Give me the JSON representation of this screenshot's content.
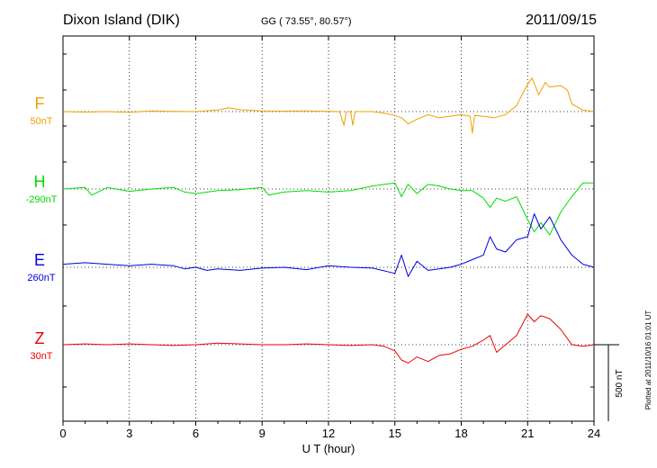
{
  "header": {
    "station": "Dixon Island (DIK)",
    "coords": "GG ( 73.55°,  80.57°)",
    "date": "2011/09/15"
  },
  "footer": {
    "plotted": "Plotted at 2011/10/16 01:01  UT",
    "scale_label": "500 nT"
  },
  "chart_data": {
    "type": "line",
    "xlabel": "U T (hour)",
    "xlim": [
      0,
      24
    ],
    "x_ticks": [
      0,
      3,
      6,
      9,
      12,
      15,
      18,
      21,
      24
    ],
    "scale_bar_nT": 500,
    "grid": "dotted",
    "series": [
      {
        "name": "F",
        "baseline_label": "50nT",
        "color": "#f0a000",
        "x": [
          0,
          1,
          2,
          3,
          4,
          5,
          6,
          7,
          7.5,
          8,
          9,
          10,
          11,
          12,
          12.5,
          12.7,
          12.8,
          13,
          13.1,
          13.2,
          14,
          14.5,
          15,
          15.3,
          15.6,
          16,
          16.5,
          17,
          17.5,
          18,
          18.4,
          18.5,
          18.6,
          19,
          19.5,
          20,
          20.5,
          21,
          21.2,
          21.5,
          21.8,
          22,
          22.5,
          22.8,
          23,
          23.5,
          24
        ],
        "values": [
          0,
          -3,
          0,
          -5,
          5,
          2,
          0,
          10,
          25,
          12,
          5,
          3,
          5,
          2,
          0,
          -90,
          0,
          0,
          -90,
          0,
          0,
          -10,
          -25,
          -40,
          -80,
          -50,
          -20,
          -40,
          -30,
          -20,
          -30,
          -140,
          -25,
          -30,
          -40,
          -20,
          40,
          180,
          220,
          110,
          190,
          160,
          170,
          140,
          50,
          10,
          0
        ]
      },
      {
        "name": "H",
        "baseline_label": "-290nT",
        "color": "#00dd00",
        "x": [
          0,
          1,
          1.3,
          2,
          3,
          4,
          5,
          5.5,
          6,
          7,
          8,
          9,
          9.3,
          10,
          11,
          12,
          13,
          14,
          15,
          15.3,
          15.6,
          16,
          16.5,
          17,
          17.5,
          18,
          18.5,
          19,
          19.3,
          19.6,
          20,
          20.5,
          21,
          21.3,
          21.6,
          22,
          22.5,
          23,
          23.5,
          24
        ],
        "values": [
          0,
          10,
          -40,
          10,
          -15,
          0,
          10,
          -20,
          -30,
          -10,
          -5,
          10,
          -40,
          -20,
          -10,
          -20,
          -10,
          20,
          40,
          -50,
          30,
          -30,
          30,
          20,
          0,
          -10,
          -10,
          -60,
          -120,
          -60,
          -80,
          -50,
          -200,
          -280,
          -220,
          -300,
          -150,
          -50,
          40,
          40
        ]
      },
      {
        "name": "E",
        "baseline_label": "260nT",
        "color": "#0000dd",
        "x": [
          0,
          1,
          2,
          3,
          4,
          5,
          5.5,
          6,
          6.5,
          7,
          8,
          9,
          10,
          11,
          12,
          13,
          14,
          15,
          15.3,
          15.6,
          16,
          16.5,
          17,
          17.5,
          18,
          18.5,
          19,
          19.3,
          19.6,
          20,
          20.5,
          21,
          21.3,
          21.6,
          22,
          22.5,
          23,
          23.5,
          24
        ],
        "values": [
          20,
          30,
          20,
          10,
          20,
          10,
          -10,
          0,
          -20,
          -10,
          -20,
          -5,
          0,
          -15,
          10,
          0,
          -5,
          -40,
          80,
          -60,
          40,
          -20,
          -10,
          0,
          20,
          50,
          80,
          200,
          120,
          100,
          180,
          200,
          350,
          250,
          330,
          180,
          80,
          20,
          0
        ]
      },
      {
        "name": "Z",
        "baseline_label": "30nT",
        "color": "#ee0000",
        "x": [
          0,
          1,
          2,
          3,
          4,
          5,
          6,
          7,
          8,
          9,
          10,
          11,
          12,
          13,
          14,
          14.5,
          15,
          15.3,
          15.6,
          16,
          16.5,
          17,
          17.5,
          18,
          18.5,
          19,
          19.3,
          19.6,
          20,
          20.5,
          21,
          21.3,
          21.6,
          22,
          22.5,
          23,
          23.5,
          24
        ],
        "values": [
          0,
          5,
          0,
          5,
          0,
          -5,
          0,
          10,
          5,
          0,
          0,
          5,
          0,
          -5,
          0,
          -10,
          -40,
          -100,
          -120,
          -80,
          -110,
          -70,
          -60,
          -30,
          -10,
          30,
          60,
          -50,
          0,
          60,
          200,
          150,
          190,
          170,
          100,
          0,
          -10,
          0
        ]
      }
    ]
  }
}
